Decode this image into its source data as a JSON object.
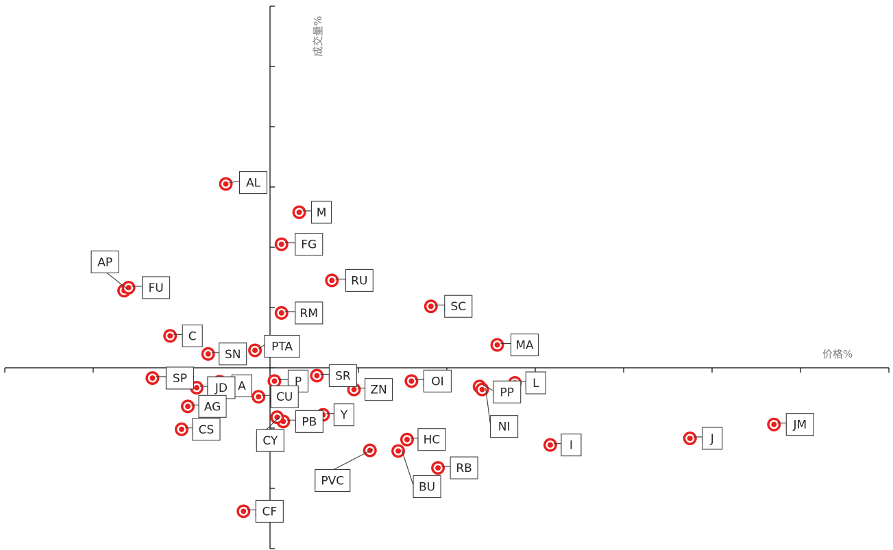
{
  "chart_data": {
    "type": "scatter",
    "xlabel": "价格%",
    "ylabel": "成交量%",
    "xlim": [
      -3.0,
      7.0
    ],
    "ylim": [
      -3.0,
      6.0
    ],
    "x_tick_step": 1,
    "y_tick_step": 1,
    "grid": false,
    "legend": "none",
    "marker_color": "#e8201f",
    "points": [
      {
        "label": "AL",
        "x": -0.5,
        "y": 3.05
      },
      {
        "label": "M",
        "x": 0.33,
        "y": 2.58
      },
      {
        "label": "FG",
        "x": 0.13,
        "y": 2.05
      },
      {
        "label": "AP",
        "x": -1.65,
        "y": 1.28
      },
      {
        "label": "FU",
        "x": -1.6,
        "y": 1.33
      },
      {
        "label": "RU",
        "x": 0.7,
        "y": 1.45
      },
      {
        "label": "SC",
        "x": 1.82,
        "y": 1.02
      },
      {
        "label": "RM",
        "x": 0.13,
        "y": 0.91
      },
      {
        "label": "C",
        "x": -1.13,
        "y": 0.53
      },
      {
        "label": "MA",
        "x": 2.57,
        "y": 0.38
      },
      {
        "label": "SN",
        "x": -0.7,
        "y": 0.23
      },
      {
        "label": "PTA",
        "x": -0.17,
        "y": 0.29
      },
      {
        "label": "A",
        "x": -0.57,
        "y": -0.23
      },
      {
        "label": "SP",
        "x": -1.33,
        "y": -0.17
      },
      {
        "label": "JD",
        "x": -0.83,
        "y": -0.33
      },
      {
        "label": "P",
        "x": 0.05,
        "y": -0.22
      },
      {
        "label": "SR",
        "x": 0.53,
        "y": -0.13
      },
      {
        "label": "ZN",
        "x": 0.95,
        "y": -0.36
      },
      {
        "label": "OI",
        "x": 1.6,
        "y": -0.22
      },
      {
        "label": "L",
        "x": 2.77,
        "y": -0.25
      },
      {
        "label": "PP",
        "x": 2.37,
        "y": -0.31
      },
      {
        "label": "NI",
        "x": 2.4,
        "y": -0.36
      },
      {
        "label": "CU",
        "x": -0.13,
        "y": -0.48
      },
      {
        "label": "AG",
        "x": -0.93,
        "y": -0.64
      },
      {
        "label": "Y",
        "x": 0.6,
        "y": -0.78
      },
      {
        "label": "PB",
        "x": 0.15,
        "y": -0.89
      },
      {
        "label": "CY",
        "x": 0.08,
        "y": -0.82
      },
      {
        "label": "CS",
        "x": -1.0,
        "y": -1.02
      },
      {
        "label": "HC",
        "x": 1.55,
        "y": -1.19
      },
      {
        "label": "I",
        "x": 3.17,
        "y": -1.28
      },
      {
        "label": "J",
        "x": 4.75,
        "y": -1.17
      },
      {
        "label": "JM",
        "x": 5.7,
        "y": -0.94
      },
      {
        "label": "PVC",
        "x": 1.13,
        "y": -1.37
      },
      {
        "label": "BU",
        "x": 1.45,
        "y": -1.38
      },
      {
        "label": "RB",
        "x": 1.9,
        "y": -1.66
      },
      {
        "label": "CF",
        "x": -0.3,
        "y": -2.38
      }
    ]
  }
}
